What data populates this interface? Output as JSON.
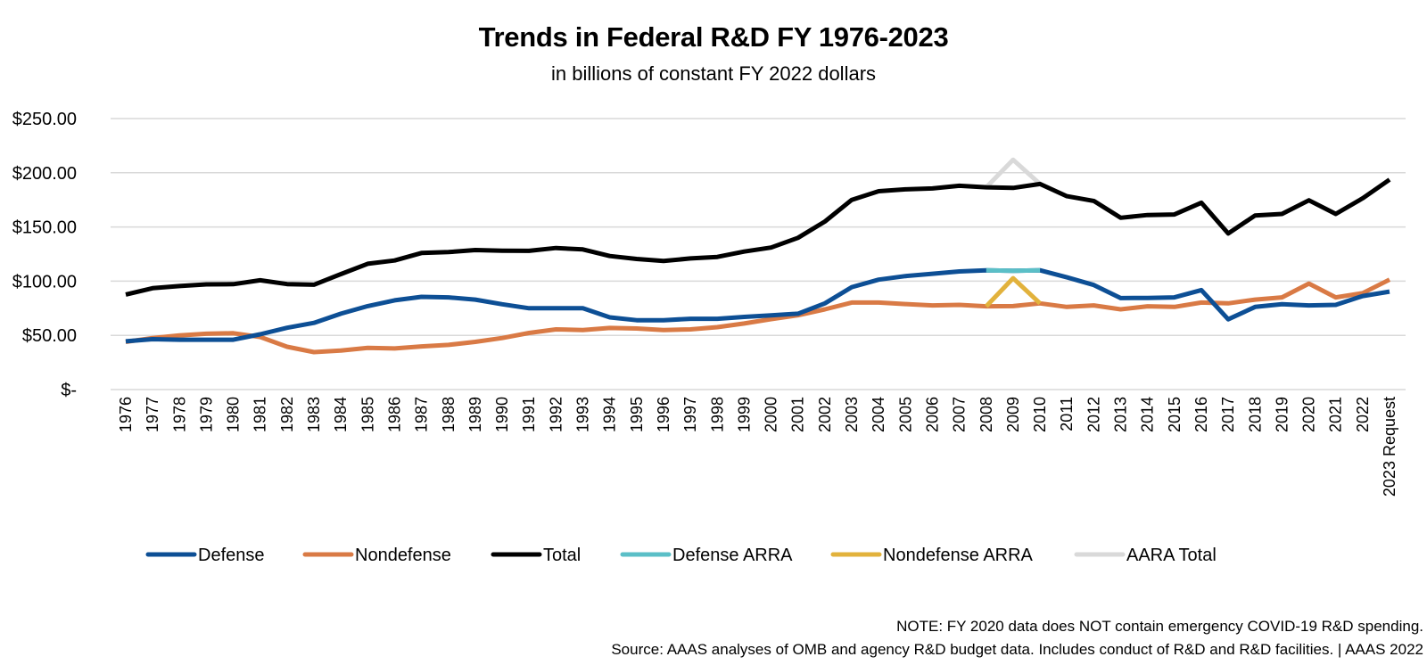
{
  "chart_data": {
    "type": "line",
    "title": "Trends in Federal R&D FY 1976-2023",
    "subtitle": "in billions of constant FY 2022 dollars",
    "xlabel": "",
    "ylabel": "",
    "ylim": [
      0,
      250
    ],
    "yticks": [
      0,
      50,
      100,
      150,
      200,
      250
    ],
    "ytick_labels": [
      "$-",
      "$50.00",
      "$100.00",
      "$150.00",
      "$200.00",
      "$250.00"
    ],
    "grid": "horizontal",
    "legend_position": "bottom",
    "categories": [
      "1976",
      "1977",
      "1978",
      "1979",
      "1980",
      "1981",
      "1982",
      "1983",
      "1984",
      "1985",
      "1986",
      "1987",
      "1988",
      "1989",
      "1990",
      "1991",
      "1992",
      "1993",
      "1994",
      "1995",
      "1996",
      "1997",
      "1998",
      "1999",
      "2000",
      "2001",
      "2002",
      "2003",
      "2004",
      "2005",
      "2006",
      "2007",
      "2008",
      "2009",
      "2010",
      "2011",
      "2012",
      "2013",
      "2014",
      "2015",
      "2016",
      "2017",
      "2018",
      "2019",
      "2020",
      "2021",
      "2022",
      "2023 Request"
    ],
    "series": [
      {
        "name": "Defense",
        "color": "#0D4F95",
        "values": [
          44.5,
          46.5,
          46,
          46,
          46,
          51,
          57,
          61.5,
          70,
          77,
          82.3,
          85.5,
          85,
          83,
          78.7,
          75,
          75,
          75,
          66.6,
          64,
          64,
          65.3,
          65.3,
          67,
          68.5,
          70,
          79.5,
          94.5,
          101.4,
          104.7,
          106.8,
          109,
          110,
          109.5,
          110,
          103.5,
          96.5,
          84.4,
          84.5,
          85,
          91.8,
          64.8,
          76.2,
          78.7,
          77.6,
          78.1,
          86.3,
          90.4
        ]
      },
      {
        "name": "Nondefense",
        "color": "#D97A45",
        "values": [
          44,
          47.5,
          50,
          51.5,
          52,
          48.5,
          39.5,
          34.5,
          36,
          38.5,
          37.9,
          39.8,
          41.2,
          44,
          47.5,
          52.2,
          55.5,
          54.9,
          56.8,
          56.3,
          54.9,
          55.5,
          57.6,
          60.9,
          65,
          68.5,
          74,
          80.3,
          80.3,
          78.9,
          77.6,
          78.1,
          76.8,
          77,
          79.5,
          76.2,
          77.6,
          74,
          76.8,
          76.2,
          80.3,
          79.5,
          83,
          85,
          97.8,
          85,
          89,
          101.4
        ]
      },
      {
        "name": "Total",
        "color": "#000000",
        "values": [
          87.7,
          93.5,
          95.5,
          97,
          97.2,
          100.8,
          97.3,
          96.7,
          106.5,
          116,
          119.1,
          126,
          126.8,
          128.7,
          128.1,
          128,
          130.6,
          129.3,
          123.2,
          120.5,
          118.6,
          121,
          122.4,
          127.3,
          131,
          140,
          155,
          175,
          183,
          184.7,
          185.5,
          188,
          186.6,
          186,
          189.6,
          178.4,
          174,
          158.5,
          161,
          161.5,
          172.4,
          144,
          160.6,
          162,
          174.6,
          162,
          176.5,
          193.7
        ]
      },
      {
        "name": "Defense ARRA",
        "color": "#5BBFC7",
        "values": [
          null,
          null,
          null,
          null,
          null,
          null,
          null,
          null,
          null,
          null,
          null,
          null,
          null,
          null,
          null,
          null,
          null,
          null,
          null,
          null,
          null,
          null,
          null,
          null,
          null,
          null,
          null,
          null,
          null,
          null,
          null,
          null,
          110,
          109.5,
          110,
          null,
          null,
          null,
          null,
          null,
          null,
          null,
          null,
          null,
          null,
          null,
          null,
          null
        ]
      },
      {
        "name": "Nondefense ARRA",
        "color": "#E2B23C",
        "values": [
          null,
          null,
          null,
          null,
          null,
          null,
          null,
          null,
          null,
          null,
          null,
          null,
          null,
          null,
          null,
          null,
          null,
          null,
          null,
          null,
          null,
          null,
          null,
          null,
          null,
          null,
          null,
          null,
          null,
          null,
          null,
          null,
          76.8,
          102.7,
          79.5,
          null,
          null,
          null,
          null,
          null,
          null,
          null,
          null,
          null,
          null,
          null,
          null,
          null
        ]
      },
      {
        "name": "AARA Total",
        "color": "#D9D9D9",
        "values": [
          null,
          null,
          null,
          null,
          null,
          null,
          null,
          null,
          null,
          null,
          null,
          null,
          null,
          null,
          null,
          null,
          null,
          null,
          null,
          null,
          null,
          null,
          null,
          null,
          null,
          null,
          null,
          null,
          null,
          null,
          null,
          null,
          186.6,
          212,
          189.6,
          null,
          null,
          null,
          null,
          null,
          null,
          null,
          null,
          null,
          null,
          null,
          null,
          null
        ]
      }
    ],
    "legend_order": [
      "Defense",
      "Nondefense",
      "Total",
      "Defense ARRA",
      "Nondefense ARRA",
      "AARA Total"
    ],
    "draw_order": [
      "AARA Total",
      "Total",
      "Nondefense",
      "Nondefense ARRA",
      "Defense",
      "Defense ARRA"
    ]
  },
  "footer": {
    "note": "NOTE: FY 2020 data does NOT contain emergency COVID-19 R&D spending.",
    "source": "Source: AAAS analyses of OMB and agency R&D budget data. Includes conduct of R&D and R&D facilities. | AAAS 2022"
  },
  "gridline_color": "#D9D9D9"
}
